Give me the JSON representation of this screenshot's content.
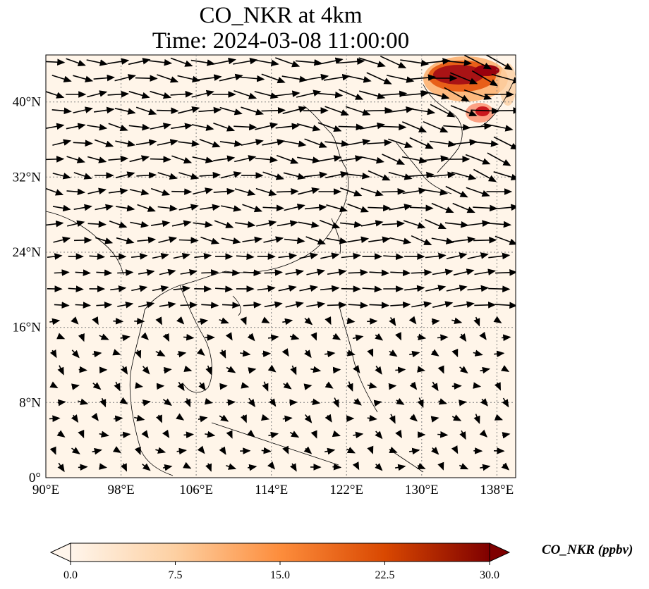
{
  "title": {
    "line1": "CO_NKR at 4km",
    "line2": "Time: 2024-03-08 11:00:00"
  },
  "map": {
    "lon_range": [
      90,
      140
    ],
    "lat_range": [
      0,
      45
    ],
    "lon_ticks": [
      "90°E",
      "98°E",
      "106°E",
      "114°E",
      "122°E",
      "130°E",
      "138°E"
    ],
    "lat_ticks": [
      "0°",
      "8°N",
      "16°N",
      "24°N",
      "32°N",
      "40°N"
    ],
    "gridlines": true,
    "background_color": "#fff5e9",
    "wind_vectors_shown": true,
    "plume_region": "near 42°N, 133°E (Sea of Japan / Korea–Japan)"
  },
  "colorbar": {
    "label": "CO_NKR (ppbv)",
    "ticks": [
      "0.0",
      "7.5",
      "15.0",
      "22.5",
      "30.0"
    ],
    "range": [
      0,
      30
    ],
    "extend": "both",
    "colormap": [
      "#fff5eb",
      "#fdd0a2",
      "#fd8d3c",
      "#d94801",
      "#7f0000"
    ]
  }
}
